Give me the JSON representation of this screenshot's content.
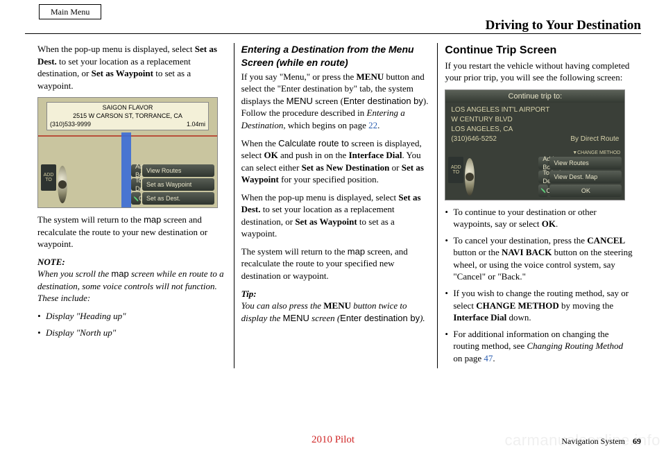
{
  "header": {
    "main_menu": "Main Menu",
    "title": "Driving to Your Destination"
  },
  "col1": {
    "p1_a": "When the pop-up menu is displayed, select ",
    "p1_b": "Set as Dest.",
    "p1_c": " to set your location as a replacement destination, or ",
    "p1_d": "Set as Waypoint",
    "p1_e": " to set as a waypoint.",
    "shot": {
      "title": "SAIGON FLAVOR",
      "addr": "2515 W CARSON ST, TORRANCE, CA",
      "phone": "(310)533-9999",
      "dist": "1.04mi",
      "add_to": "ADD TO",
      "btns": [
        "Address Book",
        "View Routes",
        "Today's Dest.",
        "Set as Waypoint",
        "CALL",
        "Set as Dest."
      ]
    },
    "p2_a": "The system will return to the ",
    "p2_b": "map",
    "p2_c": " screen and recalculate the route to your new destination or waypoint.",
    "note_head": "NOTE:",
    "note_a": "When you scroll the ",
    "note_b": "map",
    "note_c": " screen while en route to a destination, some voice controls will not function. These include:",
    "note_bullets": [
      "Display \"Heading up\"",
      "Display \"North up\""
    ]
  },
  "col2": {
    "h": "Entering a Destination from the Menu Screen (while en route)",
    "p1_a": "If you say \"Menu,\" or press the ",
    "p1_b": "MENU",
    "p1_c": " button and select the \"Enter destination by\" tab, the system displays the ",
    "p1_d": "MENU",
    "p1_e": " screen (",
    "p1_f": "Enter destination by",
    "p1_g": "). Follow the procedure described in ",
    "p1_h": "Entering a Destination",
    "p1_i": ", which begins on page ",
    "p1_j": "22",
    "p1_k": ".",
    "p2_a": "When the ",
    "p2_b": "Calculate route to",
    "p2_c": " screen is displayed, select ",
    "p2_d": "OK",
    "p2_e": " and push in on the ",
    "p2_f": "Interface Dial",
    "p2_g": ". You can select either ",
    "p2_h": "Set as New Destination",
    "p2_i": " or ",
    "p2_j": "Set as Waypoint",
    "p2_k": " for your specified position.",
    "p3_a": "When the pop-up menu is displayed, select ",
    "p3_b": "Set as Dest.",
    "p3_c": " to set your location as a replacement destination, or ",
    "p3_d": "Set as Waypoint",
    "p3_e": " to set as a waypoint.",
    "p4_a": "The system will return to the ",
    "p4_b": "map",
    "p4_c": " screen, and recalculate the route to your specified new destination or waypoint.",
    "tip_head": "Tip:",
    "tip_a": "You can also press the ",
    "tip_b": "MENU",
    "tip_c": " button twice to display the ",
    "tip_d": "MENU",
    "tip_e": " screen (",
    "tip_f": "Enter destination by",
    "tip_g": ")."
  },
  "col3": {
    "h": "Continue Trip Screen",
    "p1": "If you restart the vehicle without having completed your prior trip, you will see the following screen:",
    "shot": {
      "title": "Continue trip to:",
      "line1": "LOS ANGELES INT'L AIRPORT",
      "line2": "W CENTURY BLVD",
      "line3": "LOS ANGELES, CA",
      "phone": "(310)646-5252",
      "route": "By Direct Route",
      "add_to": "ADD TO",
      "btns": [
        "Address Book",
        "View Routes",
        "Today's Dest.",
        "View Dest. Map",
        "CALL",
        "OK"
      ],
      "change": "▼CHANGE METHOD"
    },
    "b1_a": "To continue to your destination or other waypoints, say or select ",
    "b1_b": "OK",
    "b1_c": ".",
    "b2_a": "To cancel your destination, press the ",
    "b2_b": "CANCEL",
    "b2_c": " button or the ",
    "b2_d": "NAVI BACK",
    "b2_e": " button on the steering wheel, or using the voice control system, say \"Cancel\" or \"Back.\"",
    "b3_a": "If you wish to change the routing method, say or select ",
    "b3_b": "CHANGE METHOD",
    "b3_c": " by moving the ",
    "b3_d": "Interface Dial",
    "b3_e": " down.",
    "b4_a": "For additional information on changing the routing method, see ",
    "b4_b": "Changing Routing Method",
    "b4_c": " on page ",
    "b4_d": "47",
    "b4_e": "."
  },
  "footer": {
    "model": "2010 Pilot",
    "label": "Navigation System",
    "page": "69",
    "watermark": "carmanualsonline.info"
  }
}
